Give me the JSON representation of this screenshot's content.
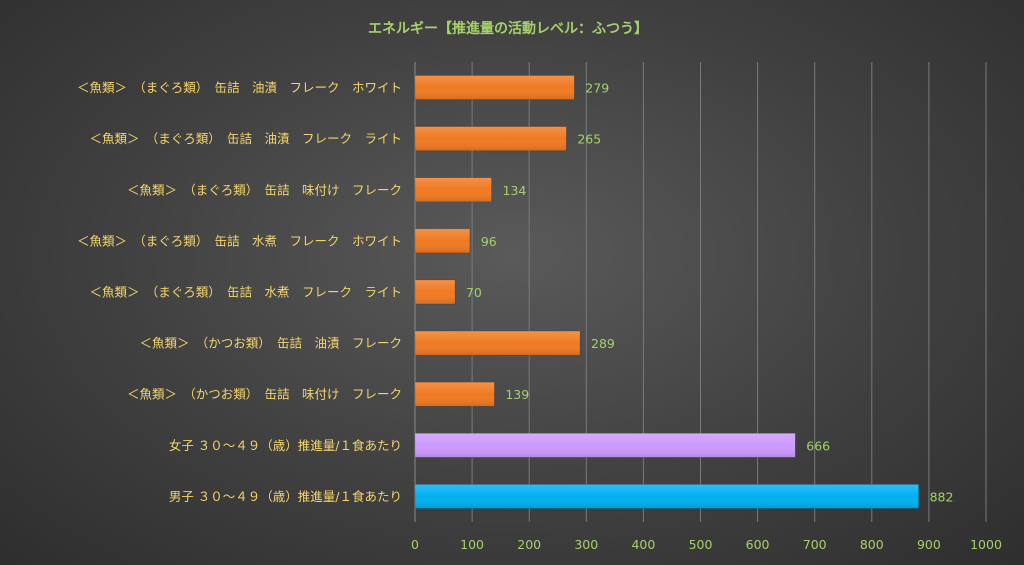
{
  "chart_data": {
    "type": "bar",
    "orientation": "horizontal",
    "title": "エネルギー【推進量の活動レベル：ふつう】",
    "categories": [
      "＜魚類＞　（まぐろ類）　缶詰　油漬　フレーク　ホワイト",
      "＜魚類＞　（まぐろ類）　缶詰　油漬　フレーク　ライト",
      "＜魚類＞　（まぐろ類）　缶詰　味付け　フレーク",
      "＜魚類＞　（まぐろ類）　缶詰　水煮　フレーク　ホワイト",
      "＜魚類＞　（まぐろ類）　缶詰　水煮　フレーク　ライト",
      "＜魚類＞　（かつお類）　缶詰　油漬　フレーク",
      "＜魚類＞　（かつお類）　缶詰　味付け　フレーク",
      "女子 ３０～４９（歳）推進量/１食あたり",
      "男子 ３０～４９（歳）推進量/１食あたり"
    ],
    "values": [
      279,
      265,
      134,
      96,
      70,
      289,
      139,
      666,
      882
    ],
    "bar_colors": [
      "#f07a22",
      "#f07a22",
      "#f07a22",
      "#f07a22",
      "#f07a22",
      "#f07a22",
      "#f07a22",
      "#cc99ff",
      "#00b0f0"
    ],
    "xlim": [
      0,
      1000
    ],
    "xticks": [
      0,
      100,
      200,
      300,
      400,
      500,
      600,
      700,
      800,
      900,
      1000
    ],
    "grid": true,
    "legend": "none"
  }
}
